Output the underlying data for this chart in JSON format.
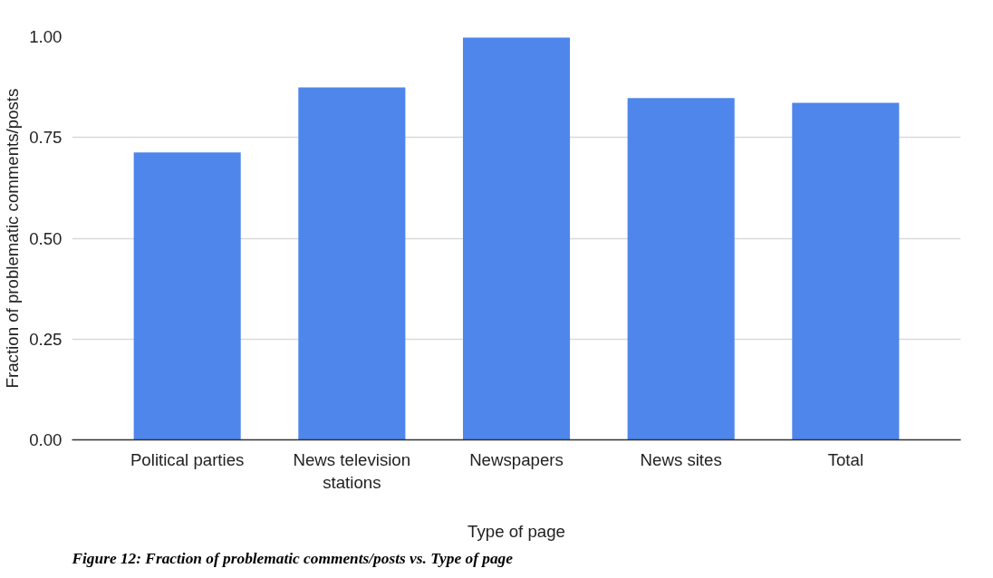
{
  "chart_data": {
    "type": "bar",
    "categories": [
      "Political parties",
      "News television stations",
      "Newspapers",
      "News sites",
      "Total"
    ],
    "values": [
      0.713,
      0.874,
      0.998,
      0.848,
      0.836
    ],
    "color": "#4f86ec",
    "xlabel": "Type of page",
    "ylabel": "Fraction of problematic comments/posts",
    "ylim": [
      0,
      1.0
    ],
    "yticks": [
      {
        "value": 0,
        "label": "0.00"
      },
      {
        "value": 0.25,
        "label": "0.25"
      },
      {
        "value": 0.5,
        "label": "0.50"
      },
      {
        "value": 0.75,
        "label": "0.75"
      },
      {
        "value": 1.0,
        "label": "1.00"
      }
    ],
    "grid": "y",
    "annotations": [
      "Figure 12: Fraction of problematic comments/posts vs. Type of page"
    ]
  }
}
